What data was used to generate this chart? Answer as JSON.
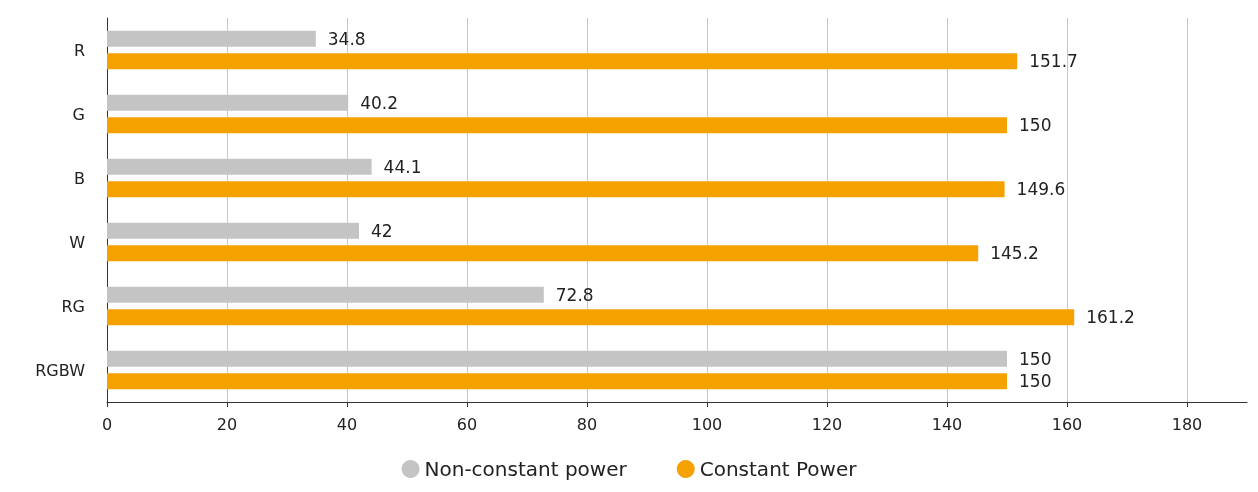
{
  "chart_data": {
    "type": "bar",
    "orientation": "horizontal",
    "categories": [
      "R",
      "G",
      "B",
      "W",
      "RG",
      "RGBW"
    ],
    "series": [
      {
        "name": "Non-constant power",
        "color": "#c4c4c4",
        "values": [
          34.8,
          40.2,
          44.1,
          42,
          72.8,
          150
        ]
      },
      {
        "name": "Constant Power",
        "color": "#f5a200",
        "values": [
          151.7,
          150,
          149.6,
          145.2,
          161.2,
          150
        ]
      }
    ],
    "xlim": [
      0,
      190
    ],
    "xticks": [
      0,
      20,
      40,
      60,
      80,
      100,
      120,
      140,
      160,
      180
    ],
    "grid": "x",
    "legend": "bottom",
    "data_labels": true
  }
}
